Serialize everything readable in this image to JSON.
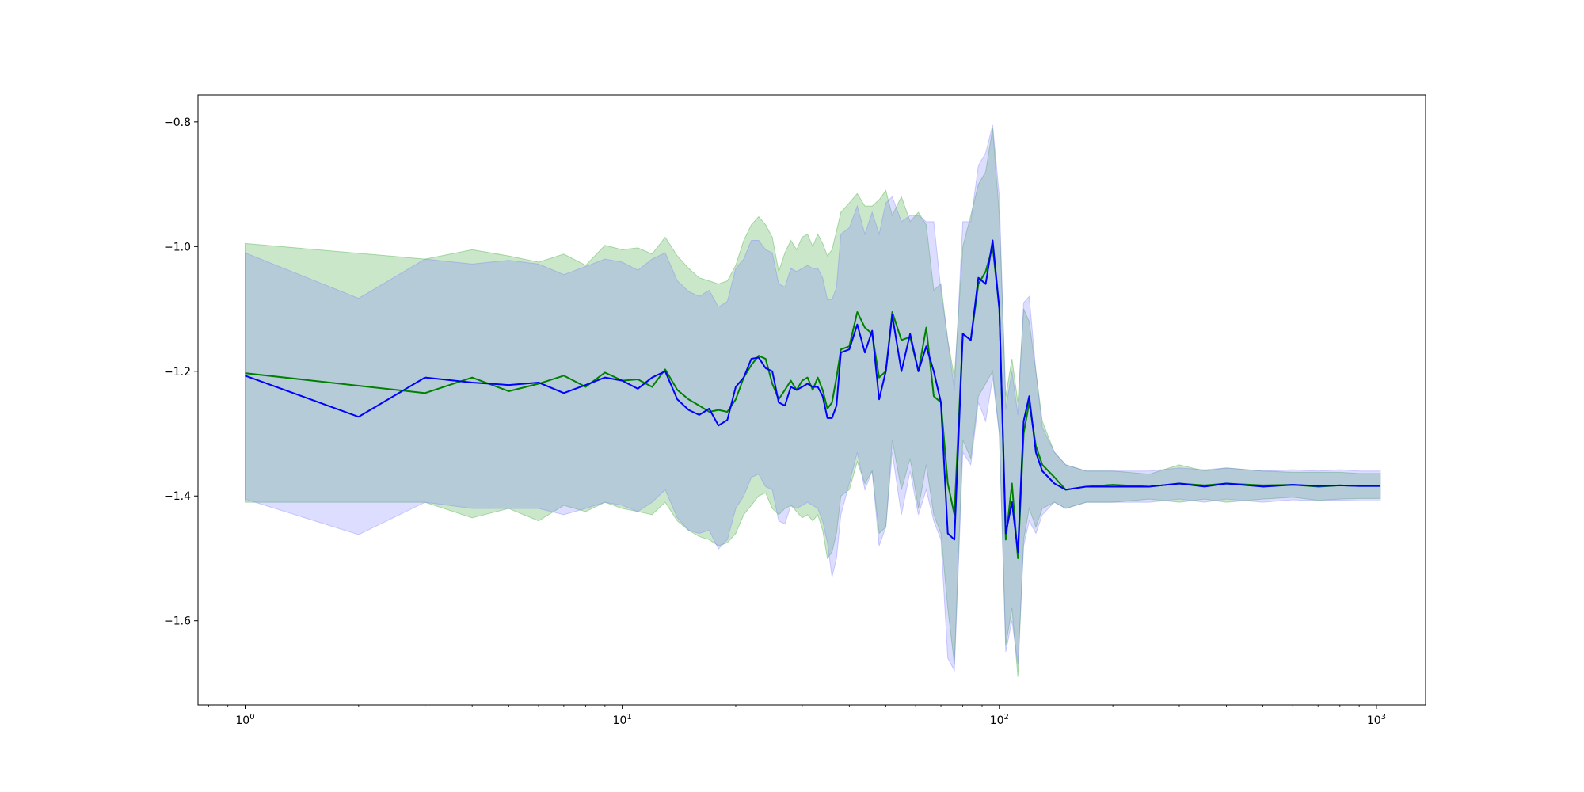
{
  "chart_data": {
    "type": "line",
    "x_scale": "log",
    "xlim": [
      0.75,
      1350
    ],
    "ylim": [
      -1.735,
      -0.757
    ],
    "grid": false,
    "x_ticks": [
      {
        "value": 1,
        "base": "10",
        "exp": "0"
      },
      {
        "value": 10,
        "base": "10",
        "exp": "1"
      },
      {
        "value": 100,
        "base": "10",
        "exp": "2"
      },
      {
        "value": 1000,
        "base": "10",
        "exp": "3"
      }
    ],
    "y_ticks": [
      {
        "value": -0.8,
        "label": "−0.8"
      },
      {
        "value": -1.0,
        "label": "−1.0"
      },
      {
        "value": -1.2,
        "label": "−1.2"
      },
      {
        "value": -1.4,
        "label": "−1.4"
      },
      {
        "value": -1.6,
        "label": "−1.6"
      }
    ],
    "series": [
      {
        "color": "#008000",
        "band_color": "#2ca02c",
        "x": [
          1,
          3,
          4,
          5,
          6,
          7,
          8,
          9,
          10,
          11,
          12,
          13,
          14,
          15,
          16,
          17,
          18,
          19,
          20,
          21,
          22,
          23,
          24,
          25,
          26,
          27,
          28,
          29,
          30,
          31,
          32,
          33,
          34,
          35,
          36,
          37,
          38,
          40,
          42,
          44,
          46,
          48,
          50,
          52,
          55,
          58,
          61,
          64,
          67,
          70,
          73,
          76,
          80,
          84,
          88,
          92,
          96,
          100,
          104,
          108,
          112,
          116,
          120,
          125,
          130,
          140,
          150,
          170,
          200,
          250,
          300,
          350,
          400,
          500,
          600,
          700,
          800,
          900,
          1024
        ],
        "y": [
          -1.203,
          -1.235,
          -1.21,
          -1.232,
          -1.22,
          -1.207,
          -1.225,
          -1.202,
          -1.215,
          -1.213,
          -1.225,
          -1.197,
          -1.23,
          -1.245,
          -1.255,
          -1.265,
          -1.262,
          -1.265,
          -1.245,
          -1.21,
          -1.19,
          -1.175,
          -1.18,
          -1.22,
          -1.245,
          -1.23,
          -1.215,
          -1.23,
          -1.215,
          -1.21,
          -1.23,
          -1.21,
          -1.23,
          -1.26,
          -1.25,
          -1.21,
          -1.165,
          -1.16,
          -1.105,
          -1.13,
          -1.14,
          -1.21,
          -1.2,
          -1.105,
          -1.15,
          -1.145,
          -1.2,
          -1.13,
          -1.24,
          -1.25,
          -1.38,
          -1.43,
          -1.14,
          -1.15,
          -1.06,
          -1.04,
          -1.0,
          -1.1,
          -1.47,
          -1.38,
          -1.5,
          -1.3,
          -1.25,
          -1.32,
          -1.35,
          -1.37,
          -1.39,
          -1.385,
          -1.382,
          -1.385,
          -1.38,
          -1.383,
          -1.38,
          -1.383,
          -1.382,
          -1.385,
          -1.383,
          -1.384,
          -1.384
        ],
        "upper": [
          -0.995,
          -1.02,
          -1.005,
          -1.015,
          -1.025,
          -1.012,
          -1.03,
          -0.998,
          -1.005,
          -1.002,
          -1.012,
          -0.985,
          -1.015,
          -1.035,
          -1.05,
          -1.055,
          -1.06,
          -1.055,
          -1.03,
          -0.99,
          -0.965,
          -0.952,
          -0.965,
          -0.985,
          -1.04,
          -1.01,
          -0.99,
          -1.005,
          -0.985,
          -0.98,
          -1.0,
          -0.98,
          -0.995,
          -1.015,
          -1.005,
          -0.975,
          -0.945,
          -0.93,
          -0.915,
          -0.935,
          -0.935,
          -0.925,
          -0.91,
          -0.95,
          -0.92,
          -0.96,
          -0.945,
          -0.965,
          -1.07,
          -1.06,
          -1.15,
          -1.21,
          -1.0,
          -0.95,
          -0.9,
          -0.88,
          -0.81,
          -0.95,
          -1.24,
          -1.18,
          -1.25,
          -1.1,
          -1.12,
          -1.2,
          -1.28,
          -1.33,
          -1.35,
          -1.36,
          -1.36,
          -1.365,
          -1.35,
          -1.36,
          -1.355,
          -1.36,
          -1.362,
          -1.362,
          -1.362,
          -1.364,
          -1.364
        ],
        "lower": [
          -1.41,
          -1.41,
          -1.435,
          -1.42,
          -1.44,
          -1.415,
          -1.425,
          -1.41,
          -1.42,
          -1.425,
          -1.43,
          -1.41,
          -1.44,
          -1.455,
          -1.465,
          -1.47,
          -1.48,
          -1.475,
          -1.46,
          -1.43,
          -1.415,
          -1.4,
          -1.395,
          -1.42,
          -1.43,
          -1.42,
          -1.415,
          -1.425,
          -1.435,
          -1.43,
          -1.44,
          -1.43,
          -1.455,
          -1.5,
          -1.49,
          -1.46,
          -1.4,
          -1.39,
          -1.345,
          -1.38,
          -1.36,
          -1.46,
          -1.45,
          -1.31,
          -1.39,
          -1.34,
          -1.42,
          -1.35,
          -1.43,
          -1.46,
          -1.58,
          -1.67,
          -1.31,
          -1.34,
          -1.24,
          -1.22,
          -1.2,
          -1.3,
          -1.64,
          -1.58,
          -1.69,
          -1.47,
          -1.42,
          -1.45,
          -1.42,
          -1.41,
          -1.42,
          -1.41,
          -1.41,
          -1.405,
          -1.41,
          -1.405,
          -1.41,
          -1.405,
          -1.402,
          -1.407,
          -1.405,
          -1.404,
          -1.404
        ]
      },
      {
        "color": "#0000ff",
        "band_color": "#7777ff",
        "x": [
          1,
          2,
          3,
          4,
          5,
          6,
          7,
          8,
          9,
          10,
          11,
          12,
          13,
          14,
          15,
          16,
          17,
          18,
          19,
          20,
          21,
          22,
          23,
          24,
          25,
          26,
          27,
          28,
          29,
          30,
          31,
          32,
          33,
          34,
          35,
          36,
          37,
          38,
          40,
          42,
          44,
          46,
          48,
          50,
          52,
          55,
          58,
          61,
          64,
          67,
          70,
          73,
          76,
          80,
          84,
          88,
          92,
          96,
          100,
          104,
          108,
          112,
          116,
          120,
          125,
          130,
          140,
          150,
          170,
          200,
          250,
          300,
          350,
          400,
          500,
          600,
          700,
          800,
          900,
          1024
        ],
        "y": [
          -1.207,
          -1.273,
          -1.21,
          -1.218,
          -1.222,
          -1.218,
          -1.235,
          -1.222,
          -1.21,
          -1.215,
          -1.228,
          -1.21,
          -1.2,
          -1.245,
          -1.262,
          -1.27,
          -1.26,
          -1.287,
          -1.278,
          -1.225,
          -1.21,
          -1.18,
          -1.178,
          -1.195,
          -1.2,
          -1.25,
          -1.255,
          -1.225,
          -1.23,
          -1.225,
          -1.22,
          -1.225,
          -1.225,
          -1.24,
          -1.275,
          -1.275,
          -1.255,
          -1.17,
          -1.165,
          -1.125,
          -1.17,
          -1.135,
          -1.245,
          -1.2,
          -1.11,
          -1.2,
          -1.14,
          -1.2,
          -1.16,
          -1.2,
          -1.25,
          -1.46,
          -1.47,
          -1.14,
          -1.15,
          -1.05,
          -1.06,
          -0.99,
          -1.1,
          -1.46,
          -1.41,
          -1.49,
          -1.28,
          -1.24,
          -1.33,
          -1.36,
          -1.38,
          -1.39,
          -1.385,
          -1.385,
          -1.385,
          -1.38,
          -1.385,
          -1.38,
          -1.385,
          -1.382,
          -1.384,
          -1.383,
          -1.384,
          -1.384
        ],
        "upper": [
          -1.01,
          -1.083,
          -1.02,
          -1.028,
          -1.022,
          -1.028,
          -1.045,
          -1.032,
          -1.02,
          -1.025,
          -1.038,
          -1.02,
          -1.01,
          -1.055,
          -1.072,
          -1.08,
          -1.07,
          -1.097,
          -1.088,
          -1.035,
          -1.02,
          -0.99,
          -0.99,
          -1.005,
          -1.01,
          -1.06,
          -1.065,
          -1.035,
          -1.04,
          -1.035,
          -1.03,
          -1.035,
          -1.035,
          -1.05,
          -1.085,
          -1.085,
          -1.065,
          -0.98,
          -0.97,
          -0.935,
          -0.98,
          -0.945,
          -0.98,
          -0.93,
          -0.92,
          -0.96,
          -0.95,
          -0.95,
          -0.96,
          -0.96,
          -1.07,
          -1.15,
          -1.23,
          -0.96,
          -0.96,
          -0.87,
          -0.85,
          -0.805,
          -0.92,
          -1.26,
          -1.2,
          -1.27,
          -1.09,
          -1.08,
          -1.2,
          -1.29,
          -1.33,
          -1.35,
          -1.36,
          -1.36,
          -1.36,
          -1.355,
          -1.358,
          -1.355,
          -1.36,
          -1.358,
          -1.36,
          -1.358,
          -1.36,
          -1.36
        ],
        "lower": [
          -1.405,
          -1.462,
          -1.41,
          -1.42,
          -1.42,
          -1.42,
          -1.43,
          -1.42,
          -1.41,
          -1.415,
          -1.425,
          -1.41,
          -1.39,
          -1.435,
          -1.455,
          -1.46,
          -1.455,
          -1.485,
          -1.47,
          -1.42,
          -1.4,
          -1.37,
          -1.365,
          -1.385,
          -1.39,
          -1.44,
          -1.445,
          -1.415,
          -1.42,
          -1.415,
          -1.41,
          -1.415,
          -1.42,
          -1.44,
          -1.475,
          -1.53,
          -1.5,
          -1.43,
          -1.38,
          -1.33,
          -1.39,
          -1.36,
          -1.48,
          -1.45,
          -1.33,
          -1.43,
          -1.36,
          -1.43,
          -1.39,
          -1.44,
          -1.47,
          -1.66,
          -1.68,
          -1.33,
          -1.35,
          -1.25,
          -1.28,
          -1.21,
          -1.3,
          -1.65,
          -1.6,
          -1.67,
          -1.48,
          -1.44,
          -1.46,
          -1.43,
          -1.41,
          -1.42,
          -1.41,
          -1.41,
          -1.41,
          -1.405,
          -1.41,
          -1.405,
          -1.41,
          -1.406,
          -1.408,
          -1.407,
          -1.408,
          -1.408
        ]
      }
    ]
  }
}
